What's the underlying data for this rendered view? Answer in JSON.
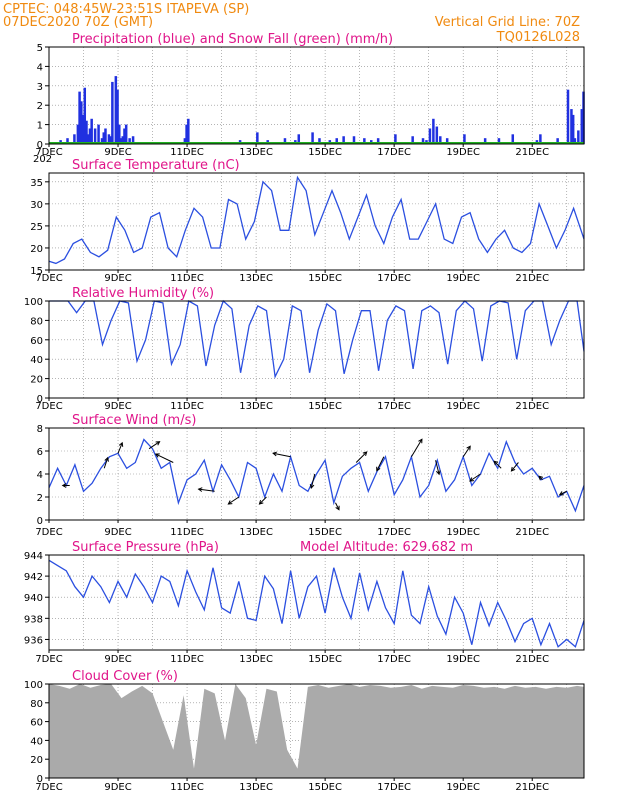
{
  "header": {
    "line1": "CPTEC:   048:45W-23:51S   ITAPEVA (SP)",
    "line2": "07DEC2020 70Z (GMT)",
    "grid_note": "Vertical Grid Line: 70Z",
    "code": "TQ0126L028"
  },
  "x_axis": {
    "labels": [
      "7DEC",
      "9DEC",
      "11DEC",
      "13DEC",
      "15DEC",
      "17DEC",
      "19DEC",
      "21DEC"
    ],
    "year_stub": "202"
  },
  "colors": {
    "precip": "#2030e0",
    "snow": "#20b020",
    "line": "#2b4fe0",
    "cloud": "#aaaaaa",
    "title": "#e0158a",
    "header": "#f08a10"
  },
  "chart_data": [
    {
      "id": "precip",
      "type": "bar",
      "title": "Precipitation (blue) and Snow Fall (green) (mm/h)",
      "ylim": [
        0,
        5
      ],
      "yticks": [
        0,
        1,
        2,
        3,
        4,
        5
      ],
      "x_range_days": [
        0,
        15.5
      ],
      "grid": "dotted",
      "series": [
        {
          "name": "Precipitation",
          "x": [
            0.3,
            0.5,
            0.7,
            0.8,
            0.85,
            0.9,
            0.95,
            1.0,
            1.05,
            1.1,
            1.15,
            1.2,
            1.3,
            1.4,
            1.5,
            1.55,
            1.6,
            1.7,
            1.75,
            1.8,
            1.9,
            1.95,
            2.0,
            2.05,
            2.1,
            2.15,
            2.2,
            2.3,
            2.4,
            3.9,
            3.95,
            4.0,
            5.5,
            6.0,
            6.3,
            6.8,
            7.1,
            7.2,
            7.6,
            7.8,
            8.1,
            8.3,
            8.5,
            8.8,
            9.1,
            9.3,
            9.5,
            10.0,
            10.5,
            10.8,
            10.9,
            11.0,
            11.1,
            11.2,
            11.3,
            11.5,
            12.0,
            12.6,
            13.0,
            13.4,
            14.1,
            14.2,
            14.7,
            15.0,
            15.1,
            15.15,
            15.2,
            15.3,
            15.4,
            15.45
          ],
          "values": [
            0.2,
            0.3,
            0.5,
            1.0,
            2.7,
            2.2,
            1.5,
            2.9,
            1.2,
            0.5,
            0.8,
            1.3,
            0.8,
            1.0,
            0.3,
            0.6,
            0.8,
            0.5,
            0.4,
            3.2,
            3.5,
            2.8,
            1.0,
            0.3,
            0.4,
            0.8,
            1.0,
            0.3,
            0.4,
            0.3,
            1.0,
            1.3,
            0.2,
            0.6,
            0.2,
            0.3,
            0.2,
            0.5,
            0.6,
            0.3,
            0.2,
            0.3,
            0.4,
            0.4,
            0.3,
            0.2,
            0.3,
            0.5,
            0.4,
            0.3,
            0.2,
            0.8,
            1.3,
            0.9,
            0.4,
            0.3,
            0.5,
            0.3,
            0.3,
            0.5,
            0.2,
            0.5,
            0.3,
            2.8,
            1.8,
            1.5,
            0.3,
            0.7,
            1.8,
            2.7
          ]
        },
        {
          "name": "Snow Fall",
          "values": [
            0
          ]
        }
      ]
    },
    {
      "id": "temp",
      "type": "line",
      "title": "Surface Temperature (nC)",
      "ylim": [
        15,
        37
      ],
      "yticks": [
        15,
        20,
        25,
        30,
        35
      ],
      "x": [
        0,
        0.2,
        0.45,
        0.7,
        0.95,
        1.2,
        1.45,
        1.7,
        1.95,
        2.2,
        2.45,
        2.7,
        2.95,
        3.2,
        3.45,
        3.7,
        3.95,
        4.2,
        4.45,
        4.7,
        4.95,
        5.2,
        5.45,
        5.7,
        5.95,
        6.2,
        6.45,
        6.7,
        6.95,
        7.2,
        7.45,
        7.7,
        7.95,
        8.2,
        8.45,
        8.7,
        8.95,
        9.2,
        9.45,
        9.7,
        9.95,
        10.2,
        10.45,
        10.7,
        10.95,
        11.2,
        11.45,
        11.7,
        11.95,
        12.2,
        12.45,
        12.7,
        12.95,
        13.2,
        13.45,
        13.7,
        13.95,
        14.2,
        14.45,
        14.7,
        14.95,
        15.2,
        15.5
      ],
      "values": [
        17,
        16.5,
        17.5,
        21,
        22,
        19,
        18,
        19.5,
        27,
        24,
        19,
        20,
        27,
        28,
        20,
        18,
        24,
        29,
        27,
        20,
        20,
        31,
        30,
        22,
        26,
        35,
        33,
        24,
        24,
        36,
        33,
        23,
        28,
        33,
        28,
        22,
        27,
        32,
        25,
        21,
        27,
        31,
        22,
        22,
        26,
        30,
        22,
        21,
        27,
        28,
        22,
        19,
        22,
        24,
        20,
        19,
        21,
        30,
        25,
        20,
        24,
        29,
        22
      ]
    },
    {
      "id": "rh",
      "type": "line",
      "title": "Relative Humidity (%)",
      "ylim": [
        0,
        100
      ],
      "yticks": [
        0,
        20,
        40,
        60,
        80,
        100
      ],
      "x": [
        0,
        0.3,
        0.55,
        0.8,
        1.05,
        1.3,
        1.55,
        1.8,
        2.05,
        2.3,
        2.55,
        2.8,
        3.05,
        3.3,
        3.55,
        3.8,
        4.05,
        4.3,
        4.55,
        4.8,
        5.05,
        5.3,
        5.55,
        5.8,
        6.05,
        6.3,
        6.55,
        6.8,
        7.05,
        7.3,
        7.55,
        7.8,
        8.05,
        8.3,
        8.55,
        8.8,
        9.05,
        9.3,
        9.55,
        9.8,
        10.05,
        10.3,
        10.55,
        10.8,
        11.05,
        11.3,
        11.55,
        11.8,
        12.05,
        12.3,
        12.55,
        12.8,
        13.05,
        13.3,
        13.55,
        13.8,
        14.05,
        14.3,
        14.55,
        14.8,
        15.05,
        15.3,
        15.5
      ],
      "values": [
        100,
        100,
        100,
        88,
        100,
        100,
        55,
        80,
        100,
        98,
        38,
        60,
        100,
        98,
        35,
        55,
        100,
        95,
        33,
        75,
        100,
        92,
        26,
        75,
        95,
        90,
        22,
        40,
        95,
        90,
        26,
        70,
        97,
        90,
        25,
        60,
        90,
        90,
        28,
        80,
        95,
        90,
        30,
        90,
        95,
        88,
        35,
        90,
        100,
        92,
        38,
        95,
        100,
        98,
        40,
        90,
        100,
        100,
        55,
        80,
        100,
        100,
        48
      ]
    },
    {
      "id": "wind",
      "type": "line",
      "title": "Surface Wind (m/s)",
      "ylim": [
        0,
        8
      ],
      "yticks": [
        0,
        2,
        4,
        6,
        8
      ],
      "x": [
        0,
        0.25,
        0.5,
        0.75,
        1.0,
        1.25,
        1.5,
        1.75,
        2.0,
        2.25,
        2.5,
        2.75,
        3.0,
        3.25,
        3.5,
        3.75,
        4.0,
        4.25,
        4.5,
        4.75,
        5.0,
        5.25,
        5.5,
        5.75,
        6.0,
        6.25,
        6.5,
        6.75,
        7.0,
        7.25,
        7.5,
        7.75,
        8.0,
        8.25,
        8.5,
        8.75,
        9.0,
        9.25,
        9.5,
        9.75,
        10.0,
        10.25,
        10.5,
        10.75,
        11.0,
        11.25,
        11.5,
        11.75,
        12.0,
        12.25,
        12.5,
        12.75,
        13.0,
        13.25,
        13.5,
        13.75,
        14.0,
        14.25,
        14.5,
        14.75,
        15.0,
        15.25,
        15.5
      ],
      "values": [
        2.8,
        4.5,
        3.0,
        4.8,
        2.5,
        3.2,
        4.5,
        5.5,
        5.8,
        4.5,
        5.0,
        7.0,
        6.2,
        4.5,
        5.0,
        1.5,
        3.5,
        4.0,
        5.2,
        2.5,
        4.8,
        3.5,
        2.0,
        5.0,
        4.5,
        2.0,
        4.0,
        2.5,
        5.5,
        3.0,
        2.5,
        4.0,
        5.2,
        1.5,
        3.8,
        4.5,
        5.0,
        2.5,
        4.2,
        5.5,
        2.2,
        3.5,
        5.5,
        2.0,
        3.0,
        5.2,
        2.5,
        3.5,
        5.5,
        3.0,
        4.0,
        5.8,
        4.5,
        6.8,
        5.0,
        4.0,
        4.5,
        3.5,
        3.8,
        2.0,
        2.5,
        0.8,
        3.0
      ],
      "arrows": {
        "x": [
          0.6,
          1.6,
          2.0,
          2.9,
          3.6,
          4.8,
          5.5,
          6.3,
          7.0,
          7.7,
          8.3,
          8.9,
          9.7,
          10.5,
          11.2,
          12.0,
          12.5,
          13.1,
          13.6,
          14.3,
          15.0
        ],
        "u": [
          -1,
          0.5,
          0.6,
          1.5,
          -2.5,
          -2.3,
          -1.5,
          -1,
          -2.5,
          -0.5,
          0.5,
          1.5,
          -1,
          1.5,
          0.5,
          1,
          -1.5,
          -1,
          -1,
          -0.5,
          -1
        ],
        "v": [
          0,
          1.5,
          1.5,
          1.0,
          1.2,
          0.3,
          -1,
          -1,
          0.5,
          -2,
          -1,
          1.5,
          -2,
          2.5,
          -2,
          1.5,
          -1,
          1.0,
          -1.2,
          0.5,
          -0.5
        ]
      }
    },
    {
      "id": "pressure",
      "type": "line",
      "title": "Surface Pressure (hPa)",
      "annotation": "Model Altitude: 629.682 m",
      "ylim": [
        935,
        944
      ],
      "yticks": [
        936,
        938,
        940,
        942,
        944
      ],
      "x": [
        0,
        0.25,
        0.5,
        0.75,
        1.0,
        1.25,
        1.5,
        1.75,
        2.0,
        2.25,
        2.5,
        2.75,
        3.0,
        3.25,
        3.5,
        3.75,
        4.0,
        4.25,
        4.5,
        4.75,
        5.0,
        5.25,
        5.5,
        5.75,
        6.0,
        6.25,
        6.5,
        6.75,
        7.0,
        7.25,
        7.5,
        7.75,
        8.0,
        8.25,
        8.5,
        8.75,
        9.0,
        9.25,
        9.5,
        9.75,
        10.0,
        10.25,
        10.5,
        10.75,
        11.0,
        11.25,
        11.5,
        11.75,
        12.0,
        12.25,
        12.5,
        12.75,
        13.0,
        13.25,
        13.5,
        13.75,
        14.0,
        14.25,
        14.5,
        14.75,
        15.0,
        15.25,
        15.5
      ],
      "values": [
        943.5,
        943,
        942.5,
        941,
        940,
        942,
        941,
        939.5,
        941.5,
        940,
        942.2,
        941,
        939.5,
        942,
        941.5,
        939.2,
        942.5,
        940.5,
        938.8,
        942.8,
        939,
        938.5,
        941.5,
        938,
        937.8,
        942,
        940.8,
        937.5,
        942.5,
        938,
        941,
        942,
        938.5,
        942.8,
        940,
        938,
        942.3,
        938.8,
        941.5,
        939,
        937.5,
        942.5,
        938.3,
        937.5,
        941,
        938.2,
        936.5,
        940,
        938.5,
        935.5,
        939.5,
        937.3,
        939.5,
        937.8,
        935.8,
        937.5,
        938,
        935.5,
        937.5,
        935.3,
        936,
        935.3,
        937.8
      ]
    },
    {
      "id": "cloud",
      "type": "area",
      "title": "Cloud Cover (%)",
      "ylim": [
        0,
        100
      ],
      "yticks": [
        0,
        20,
        40,
        60,
        80,
        100
      ],
      "x": [
        0,
        0.3,
        0.6,
        0.9,
        1.2,
        1.5,
        1.8,
        2.1,
        2.4,
        2.7,
        3.0,
        3.3,
        3.6,
        3.9,
        4.2,
        4.5,
        4.8,
        5.1,
        5.4,
        5.7,
        6.0,
        6.3,
        6.6,
        6.9,
        7.2,
        7.5,
        7.8,
        8.1,
        8.4,
        8.7,
        9.0,
        9.3,
        9.6,
        9.9,
        10.2,
        10.5,
        10.8,
        11.1,
        11.4,
        11.7,
        12.0,
        12.3,
        12.6,
        12.9,
        13.2,
        13.5,
        13.8,
        14.1,
        14.4,
        14.7,
        15.0,
        15.3,
        15.5
      ],
      "values": [
        100,
        98,
        95,
        100,
        96,
        99,
        100,
        85,
        92,
        98,
        90,
        60,
        30,
        88,
        10,
        95,
        90,
        40,
        100,
        85,
        35,
        95,
        92,
        30,
        10,
        97,
        99,
        96,
        98,
        100,
        97,
        99,
        98,
        96,
        97,
        99,
        95,
        98,
        97,
        96,
        99,
        98,
        96,
        97,
        95,
        98,
        96,
        97,
        95,
        97,
        96,
        98,
        97
      ]
    }
  ]
}
